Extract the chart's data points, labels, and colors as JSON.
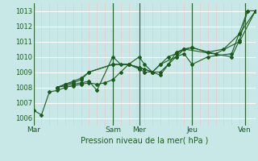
{
  "xlabel": "Pression niveau de la mer( hPa )",
  "background_color": "#c8e8e8",
  "grid_h_color": "#ffffff",
  "grid_v_color": "#e8c8c8",
  "day_line_color": "#336633",
  "line_color": "#1a5c1a",
  "ylim": [
    1005.5,
    1013.5
  ],
  "yticks": [
    1006,
    1007,
    1008,
    1009,
    1010,
    1011,
    1012,
    1013
  ],
  "day_labels": [
    "Mar",
    "Sam",
    "Mer",
    "Jeu",
    "Ven"
  ],
  "day_x": [
    0,
    60,
    80,
    120,
    160
  ],
  "xmin": 0,
  "xmax": 168,
  "series": [
    {
      "x": [
        0,
        6,
        12,
        18,
        24,
        30,
        36,
        42,
        48,
        54,
        60,
        66,
        72,
        80,
        84,
        90,
        96,
        102,
        108,
        114,
        150,
        156,
        162,
        168
      ],
      "y": [
        1006.5,
        1006.2,
        1007.7,
        1007.8,
        1008.0,
        1008.1,
        1008.2,
        1008.3,
        1008.2,
        1008.3,
        1008.5,
        1009.0,
        1009.5,
        1010.0,
        1009.5,
        1009.0,
        1009.0,
        1009.5,
        1010.3,
        1010.5,
        1010.0,
        1011.1,
        1013.0,
        1013.0
      ]
    },
    {
      "x": [
        18,
        24,
        30,
        36,
        42,
        48,
        60,
        66,
        72,
        80,
        84,
        90,
        96,
        102,
        108,
        114,
        120,
        132,
        150,
        162,
        168
      ],
      "y": [
        1008.0,
        1008.1,
        1008.2,
        1008.3,
        1008.4,
        1007.8,
        1010.0,
        1009.5,
        1009.5,
        1009.2,
        1009.0,
        1009.0,
        1008.8,
        1009.5,
        1010.0,
        1010.2,
        1009.5,
        1010.0,
        1010.2,
        1013.0,
        1013.0
      ]
    },
    {
      "x": [
        18,
        24,
        30,
        36,
        42,
        60,
        72,
        80,
        84,
        90,
        96,
        102,
        108,
        114,
        120,
        132,
        144,
        156,
        168
      ],
      "y": [
        1008.0,
        1008.2,
        1008.3,
        1008.5,
        1009.0,
        1009.5,
        1009.5,
        1009.3,
        1009.2,
        1009.0,
        1009.5,
        1010.0,
        1010.2,
        1010.5,
        1010.6,
        1010.3,
        1010.5,
        1011.5,
        1013.0
      ]
    },
    {
      "x": [
        18,
        24,
        30,
        36,
        42,
        60,
        72,
        80,
        90,
        96,
        108,
        114,
        120,
        132,
        138,
        156,
        168
      ],
      "y": [
        1008.0,
        1008.2,
        1008.4,
        1008.6,
        1009.0,
        1009.5,
        1009.5,
        1009.3,
        1009.0,
        1009.5,
        1010.0,
        1010.5,
        1010.6,
        1010.3,
        1010.2,
        1011.0,
        1013.0
      ]
    }
  ]
}
